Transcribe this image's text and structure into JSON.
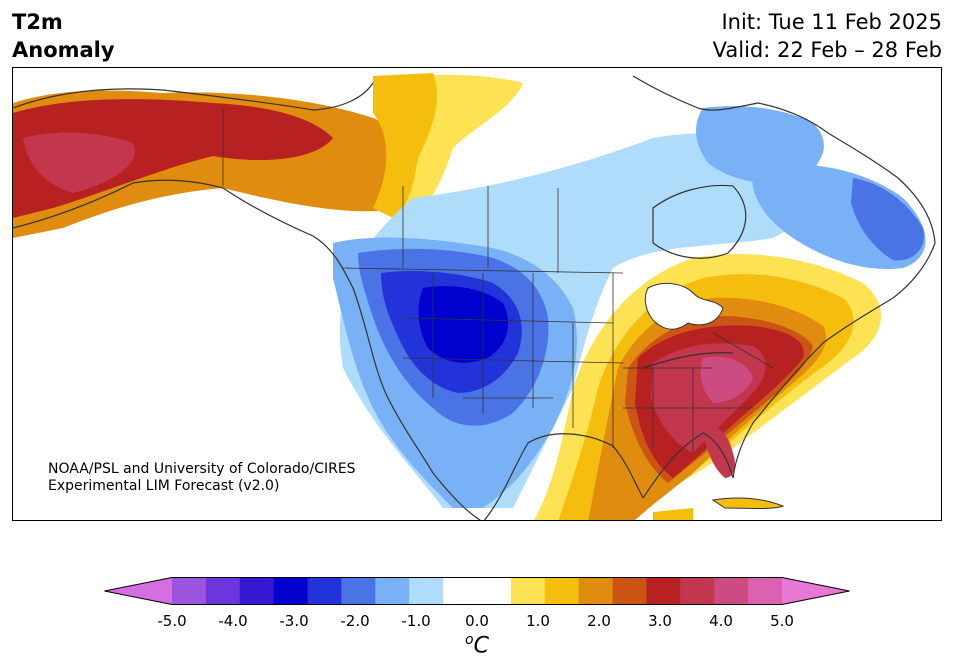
{
  "title": {
    "line1": "T2m",
    "line2": "Anomaly"
  },
  "dates": {
    "init": "Init: Tue 11 Feb 2025",
    "valid": "Valid: 22 Feb – 28 Feb"
  },
  "credit": {
    "line1": "NOAA/PSL and University of Colorado/CIRES",
    "line2": "Experimental LIM Forecast (v2.0)"
  },
  "colorbar": {
    "ticks": [
      "-5.0",
      "-4.0",
      "-3.0",
      "-2.0",
      "-1.0",
      "0.0",
      "1.0",
      "2.0",
      "3.0",
      "4.0",
      "5.0"
    ],
    "units_sup": "o",
    "units_main": "C",
    "range": [
      -5.0,
      5.0
    ],
    "step": 0.5,
    "colors": [
      "#d56ee0",
      "#9b55e0",
      "#6b36dc",
      "#3618d2",
      "#0000cf",
      "#2233da",
      "#4a73e6",
      "#78b1f5",
      "#b0dcfb",
      "#ffffff",
      "#ffffff",
      "#fde253",
      "#f5bd0d",
      "#e08d0f",
      "#cc5415",
      "#b82121",
      "#c2374d",
      "#cc4b81",
      "#db62b1",
      "#e878d6"
    ]
  }
}
